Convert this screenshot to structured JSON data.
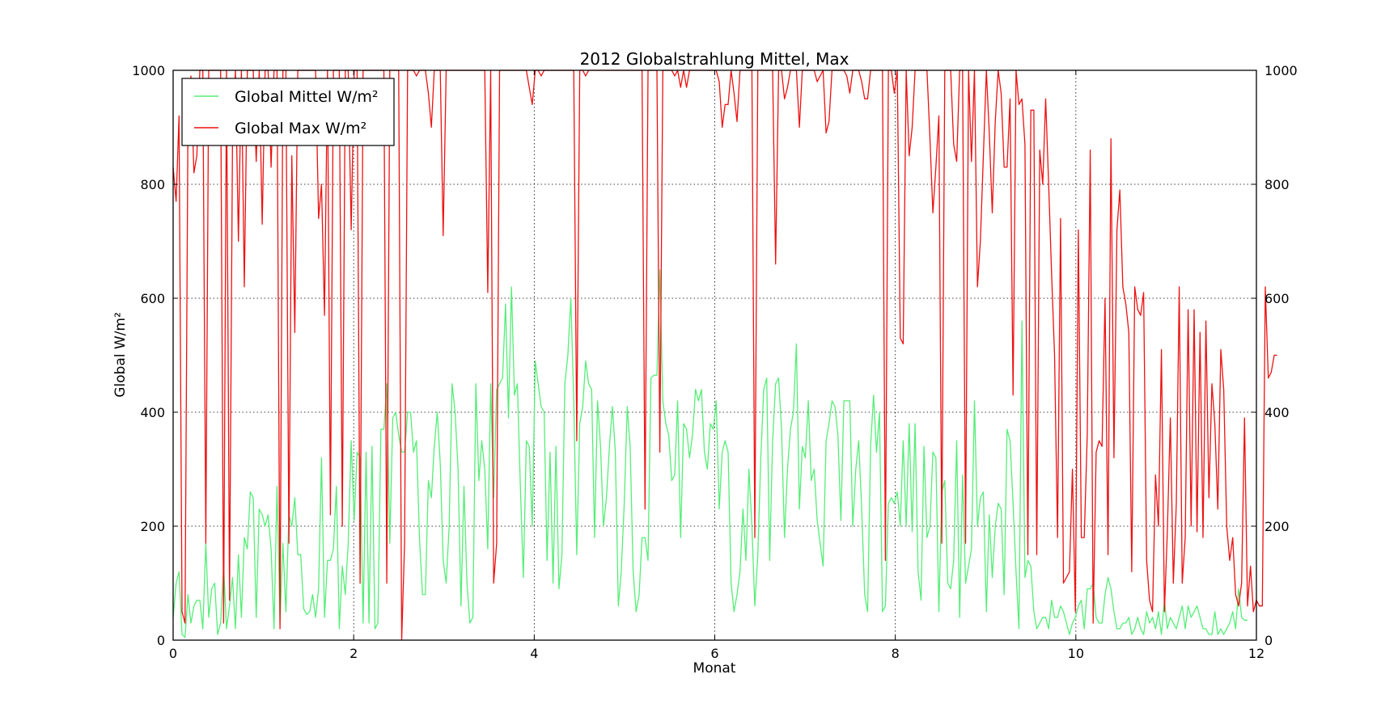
{
  "chart_data": {
    "type": "line",
    "title": "2012 Globalstrahlung Mittel, Max",
    "xlabel": "Monat",
    "ylabel": "Global W/m²",
    "xlim": [
      0,
      12
    ],
    "ylim": [
      0,
      1000
    ],
    "x_ticks": [
      "0",
      "2",
      "4",
      "6",
      "8",
      "10",
      "12"
    ],
    "y_ticks": [
      "0",
      "200",
      "400",
      "600",
      "800",
      "1000"
    ],
    "grid": true,
    "legend_position": "upper-left",
    "x_step": 0.0328767,
    "series": [
      {
        "name": "Global Mittel W/m²",
        "color": "#55ee77",
        "values": [
          40,
          100,
          120,
          10,
          5,
          80,
          30,
          60,
          70,
          70,
          20,
          170,
          40,
          90,
          100,
          10,
          30,
          130,
          20,
          60,
          110,
          20,
          150,
          40,
          180,
          160,
          260,
          250,
          40,
          230,
          220,
          200,
          220,
          160,
          20,
          270,
          30,
          170,
          50,
          220,
          200,
          250,
          150,
          150,
          55,
          45,
          50,
          80,
          40,
          90,
          320,
          40,
          140,
          140,
          160,
          270,
          20,
          130,
          80,
          170,
          350,
          210,
          330,
          320,
          30,
          330,
          30,
          340,
          20,
          30,
          370,
          370,
          450,
          170,
          390,
          400,
          360,
          330,
          330,
          400,
          400,
          330,
          350,
          180,
          80,
          80,
          280,
          250,
          340,
          400,
          310,
          140,
          100,
          200,
          450,
          400,
          300,
          60,
          270,
          100,
          30,
          40,
          450,
          280,
          350,
          300,
          160,
          450,
          250,
          440,
          450,
          460,
          590,
          390,
          620,
          430,
          450,
          270,
          110,
          350,
          340,
          200,
          490,
          450,
          410,
          400,
          140,
          330,
          100,
          340,
          90,
          150,
          450,
          500,
          600,
          420,
          150,
          380,
          410,
          490,
          450,
          440,
          180,
          420,
          340,
          200,
          250,
          340,
          410,
          330,
          60,
          120,
          240,
          410,
          340,
          120,
          50,
          80,
          180,
          180,
          140,
          460,
          465,
          465,
          650,
          420,
          380,
          360,
          280,
          290,
          420,
          180,
          380,
          370,
          320,
          360,
          440,
          420,
          440,
          330,
          300,
          380,
          370,
          420,
          230,
          330,
          350,
          330,
          100,
          50,
          80,
          120,
          230,
          140,
          300,
          200,
          60,
          150,
          320,
          440,
          460,
          140,
          350,
          450,
          460,
          370,
          180,
          300,
          370,
          400,
          520,
          230,
          340,
          320,
          420,
          280,
          300,
          210,
          170,
          130,
          350,
          380,
          420,
          410,
          360,
          210,
          420,
          420,
          420,
          200,
          300,
          350,
          230,
          80,
          50,
          340,
          430,
          330,
          400,
          50,
          60,
          240,
          250,
          240,
          260,
          200,
          350,
          200,
          380,
          190,
          380,
          120,
          70,
          340,
          180,
          200,
          330,
          320,
          50,
          260,
          280,
          100,
          90,
          140,
          350,
          40,
          290,
          100,
          130,
          160,
          420,
          200,
          250,
          260,
          50,
          220,
          110,
          200,
          240,
          230,
          80,
          370,
          350,
          240,
          120,
          20,
          560,
          110,
          140,
          130,
          50,
          20,
          30,
          40,
          40,
          20,
          70,
          40,
          40,
          60,
          50,
          30,
          10,
          30,
          40,
          60,
          70,
          20,
          90,
          90,
          100,
          40,
          30,
          30,
          80,
          110,
          90,
          50,
          20,
          20,
          30,
          30,
          40,
          10,
          20,
          40,
          20,
          10,
          50,
          30,
          40,
          20,
          50,
          10,
          70,
          20,
          40,
          30,
          20,
          40,
          60,
          20,
          60,
          40,
          50,
          60,
          40,
          20,
          20,
          10,
          10,
          50,
          10,
          20,
          10,
          20,
          30,
          50,
          20,
          90,
          40,
          35,
          35
        ]
      },
      {
        "name": "Global Max W/m²",
        "color": "#ee1111",
        "values": [
          830,
          770,
          920,
          50,
          30,
          900,
          990,
          820,
          850,
          1000,
          1000,
          170,
          1000,
          1000,
          1000,
          1000,
          1000,
          30,
          1000,
          70,
          880,
          1000,
          700,
          1000,
          620,
          1000,
          1000,
          1000,
          840,
          1000,
          730,
          1000,
          1000,
          830,
          1000,
          1000,
          20,
          1000,
          1000,
          170,
          850,
          540,
          1000,
          1000,
          1000,
          1000,
          1000,
          1000,
          1000,
          740,
          800,
          570,
          1000,
          220,
          1000,
          1000,
          1000,
          200,
          1000,
          1000,
          720,
          1000,
          1000,
          100,
          1000,
          1000,
          1000,
          1000,
          1000,
          1000,
          1000,
          1000,
          100,
          1000,
          1000,
          1000,
          1000,
          0,
          170,
          1000,
          1000,
          1000,
          990,
          1000,
          1000,
          1000,
          960,
          900,
          1000,
          1000,
          1000,
          710,
          1000,
          1000,
          1000,
          1000,
          1000,
          1000,
          1000,
          1000,
          1000,
          1000,
          1000,
          1000,
          1000,
          1000,
          610,
          1000,
          100,
          170,
          1000,
          1000,
          1000,
          1000,
          1000,
          1000,
          1000,
          1000,
          1000,
          1000,
          970,
          940,
          1000,
          1000,
          990,
          1000,
          1000,
          1000,
          1000,
          1000,
          1000,
          1000,
          1000,
          1000,
          1000,
          1000,
          350,
          1000,
          1000,
          990,
          1000,
          1000,
          1000,
          1000,
          1000,
          1000,
          1000,
          1000,
          1000,
          1000,
          1000,
          1000,
          1000,
          1000,
          1000,
          1000,
          1000,
          1000,
          1000,
          230,
          1000,
          1000,
          1000,
          1000,
          330,
          1000,
          1000,
          1000,
          1000,
          990,
          1000,
          970,
          1000,
          970,
          1000,
          1000,
          1000,
          1000,
          1000,
          1000,
          1000,
          1000,
          1000,
          1000,
          980,
          900,
          940,
          940,
          1000,
          960,
          910,
          1000,
          1000,
          1000,
          1000,
          1000,
          180,
          1000,
          1000,
          1000,
          1000,
          1000,
          1000,
          660,
          1000,
          1000,
          950,
          970,
          1000,
          1000,
          1000,
          900,
          1000,
          1000,
          1000,
          1000,
          1000,
          980,
          990,
          1000,
          890,
          910,
          1000,
          1000,
          1000,
          1000,
          1000,
          990,
          960,
          1000,
          1000,
          1000,
          980,
          950,
          950,
          1000,
          1000,
          1000,
          1000,
          1000,
          140,
          1000,
          1000,
          960,
          1000,
          530,
          520,
          1000,
          850,
          900,
          1000,
          1000,
          1000,
          1000,
          1000,
          880,
          750,
          830,
          920,
          170,
          1000,
          1000,
          1000,
          870,
          840,
          1000,
          1000,
          170,
          1000,
          840,
          1000,
          620,
          700,
          850,
          1000,
          890,
          750,
          910,
          1000,
          960,
          830,
          830,
          950,
          430,
          1000,
          940,
          950,
          870,
          150,
          930,
          930,
          150,
          860,
          800,
          950,
          800,
          640,
          500,
          180,
          740,
          100,
          110,
          120,
          300,
          50,
          720,
          180,
          180,
          360,
          860,
          30,
          330,
          350,
          340,
          600,
          150,
          880,
          320,
          720,
          790,
          620,
          590,
          540,
          120,
          620,
          580,
          570,
          610,
          140,
          70,
          50,
          290,
          200,
          510,
          50,
          190,
          390,
          100,
          240,
          620,
          100,
          180,
          580,
          200,
          580,
          190,
          540,
          180,
          560,
          250,
          450,
          380,
          230,
          510,
          440,
          200,
          140,
          180,
          80,
          60,
          100,
          390,
          60,
          130,
          50,
          70,
          60,
          60,
          620,
          460,
          470,
          500,
          500
        ]
      }
    ]
  }
}
